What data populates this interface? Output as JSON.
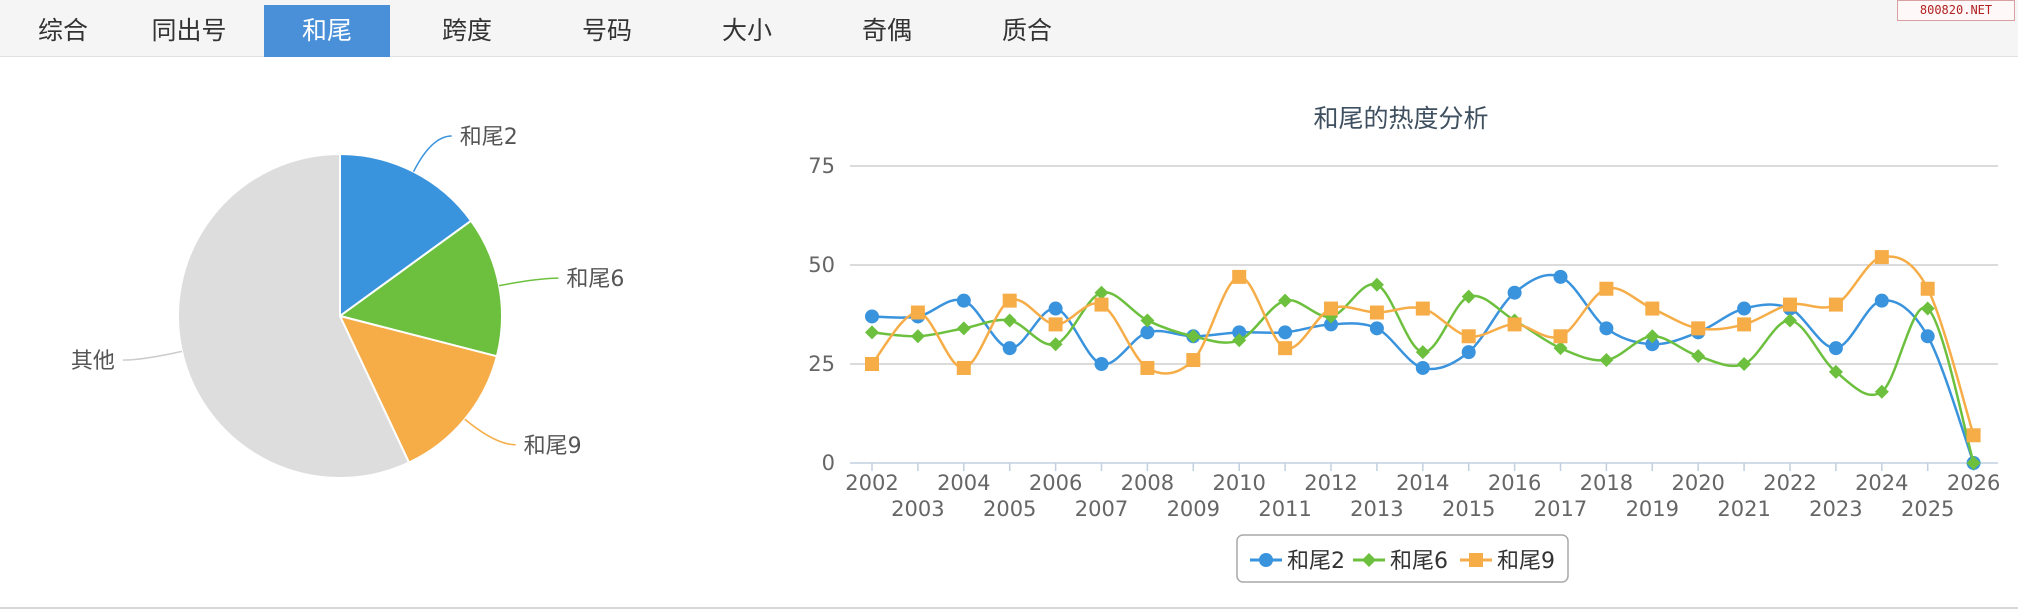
{
  "tabs": [
    {
      "label": "综合",
      "active": false
    },
    {
      "label": "同出号",
      "active": false
    },
    {
      "label": "和尾",
      "active": true
    },
    {
      "label": "跨度",
      "active": false
    },
    {
      "label": "号码",
      "active": false
    },
    {
      "label": "大小",
      "active": false
    },
    {
      "label": "奇偶",
      "active": false
    },
    {
      "label": "质合",
      "active": false
    }
  ],
  "watermark": "800820.NET",
  "colors": {
    "accent": "#4a90d9",
    "series": [
      "#3a93dd",
      "#6cc03e",
      "#f6ad48"
    ],
    "other": "#dddddd"
  },
  "chart_data": [
    {
      "type": "pie",
      "slices": [
        {
          "label": "和尾2",
          "value": 15
        },
        {
          "label": "和尾6",
          "value": 14
        },
        {
          "label": "和尾9",
          "value": 14
        },
        {
          "label": "其他",
          "value": 57
        }
      ]
    },
    {
      "type": "line",
      "title": "和尾的热度分析",
      "x": [
        "2002",
        "2003",
        "2004",
        "2005",
        "2006",
        "2007",
        "2008",
        "2009",
        "2010",
        "2011",
        "2012",
        "2013",
        "2014",
        "2015",
        "2016",
        "2017",
        "2018",
        "2019",
        "2020",
        "2021",
        "2022",
        "2023",
        "2024",
        "2025",
        "2026"
      ],
      "series": [
        {
          "name": "和尾2",
          "marker": "circle",
          "values": [
            37,
            37,
            41,
            29,
            39,
            25,
            33,
            32,
            33,
            33,
            35,
            34,
            24,
            28,
            43,
            47,
            34,
            30,
            33,
            39,
            39,
            29,
            41,
            32,
            0
          ]
        },
        {
          "name": "和尾6",
          "marker": "diamond",
          "values": [
            33,
            32,
            34,
            36,
            30,
            43,
            36,
            32,
            31,
            41,
            37,
            45,
            28,
            42,
            36,
            29,
            26,
            32,
            27,
            25,
            36,
            23,
            18,
            39,
            0
          ]
        },
        {
          "name": "和尾9",
          "marker": "square",
          "values": [
            25,
            38,
            24,
            41,
            35,
            40,
            24,
            26,
            47,
            29,
            39,
            38,
            39,
            32,
            35,
            32,
            44,
            39,
            34,
            35,
            40,
            40,
            52,
            44,
            7
          ]
        }
      ],
      "y_ticks": [
        0,
        25,
        50,
        75
      ],
      "ylim": [
        0,
        75
      ],
      "grid": true,
      "legend_position": "bottom"
    }
  ]
}
